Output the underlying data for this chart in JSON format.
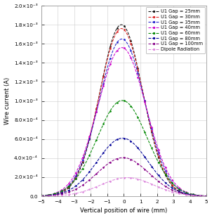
{
  "title": "",
  "xlabel": "Vertical position of wire (mm)",
  "ylabel": "Wire current (A)",
  "xlim": [
    -5,
    5
  ],
  "ylim": [
    0.0,
    0.002
  ],
  "series": [
    {
      "label": "U1 Gap = 25mm",
      "color": "#111111",
      "peak": 0.0018,
      "sigma": 1.3,
      "mu": -0.15
    },
    {
      "label": "U1 Gap = 30mm",
      "color": "#dd2222",
      "peak": 0.00176,
      "sigma": 1.33,
      "mu": -0.15
    },
    {
      "label": "U1 Gap = 35mm",
      "color": "#2222cc",
      "peak": 0.00165,
      "sigma": 1.38,
      "mu": -0.12
    },
    {
      "label": "U1 Gap = 40mm",
      "color": "#cc00cc",
      "peak": 0.00156,
      "sigma": 1.45,
      "mu": -0.12
    },
    {
      "label": "U1 Gap = 60mm",
      "color": "#008800",
      "peak": 0.001005,
      "sigma": 1.52,
      "mu": -0.1
    },
    {
      "label": "U1 Gap = 80mm",
      "color": "#000099",
      "peak": 0.00061,
      "sigma": 1.52,
      "mu": -0.08
    },
    {
      "label": "U1 Gap = 100mm",
      "color": "#880088",
      "peak": 0.000405,
      "sigma": 1.55,
      "mu": -0.05
    },
    {
      "label": "Dipole Radiation",
      "color": "#dd88dd",
      "peak": 0.000195,
      "sigma": 1.6,
      "mu": 0.2
    }
  ],
  "ytick_vals": [
    0.0,
    0.0002,
    0.0004,
    0.0006,
    0.0008,
    0.001,
    0.0012,
    0.0014,
    0.0016,
    0.0018,
    0.002
  ],
  "ytick_labels": [
    "0.0",
    "2.0×10⁻⁴",
    "4.0×10⁻⁴",
    "6.0×10⁻⁴",
    "8.0×10⁻⁴",
    "1.0×10⁻³",
    "1.2×10⁻³",
    "1.4×10⁻³",
    "1.6×10⁻³",
    "1.8×10⁻³",
    "2.0×10⁻³"
  ],
  "xticks": [
    -5,
    -4,
    -3,
    -2,
    -1,
    0,
    1,
    2,
    3,
    4,
    5
  ],
  "grid_color": "#cccccc",
  "background_color": "#ffffff",
  "legend_fontsize": 4.8,
  "axis_fontsize": 6.0,
  "tick_fontsize": 5.2
}
